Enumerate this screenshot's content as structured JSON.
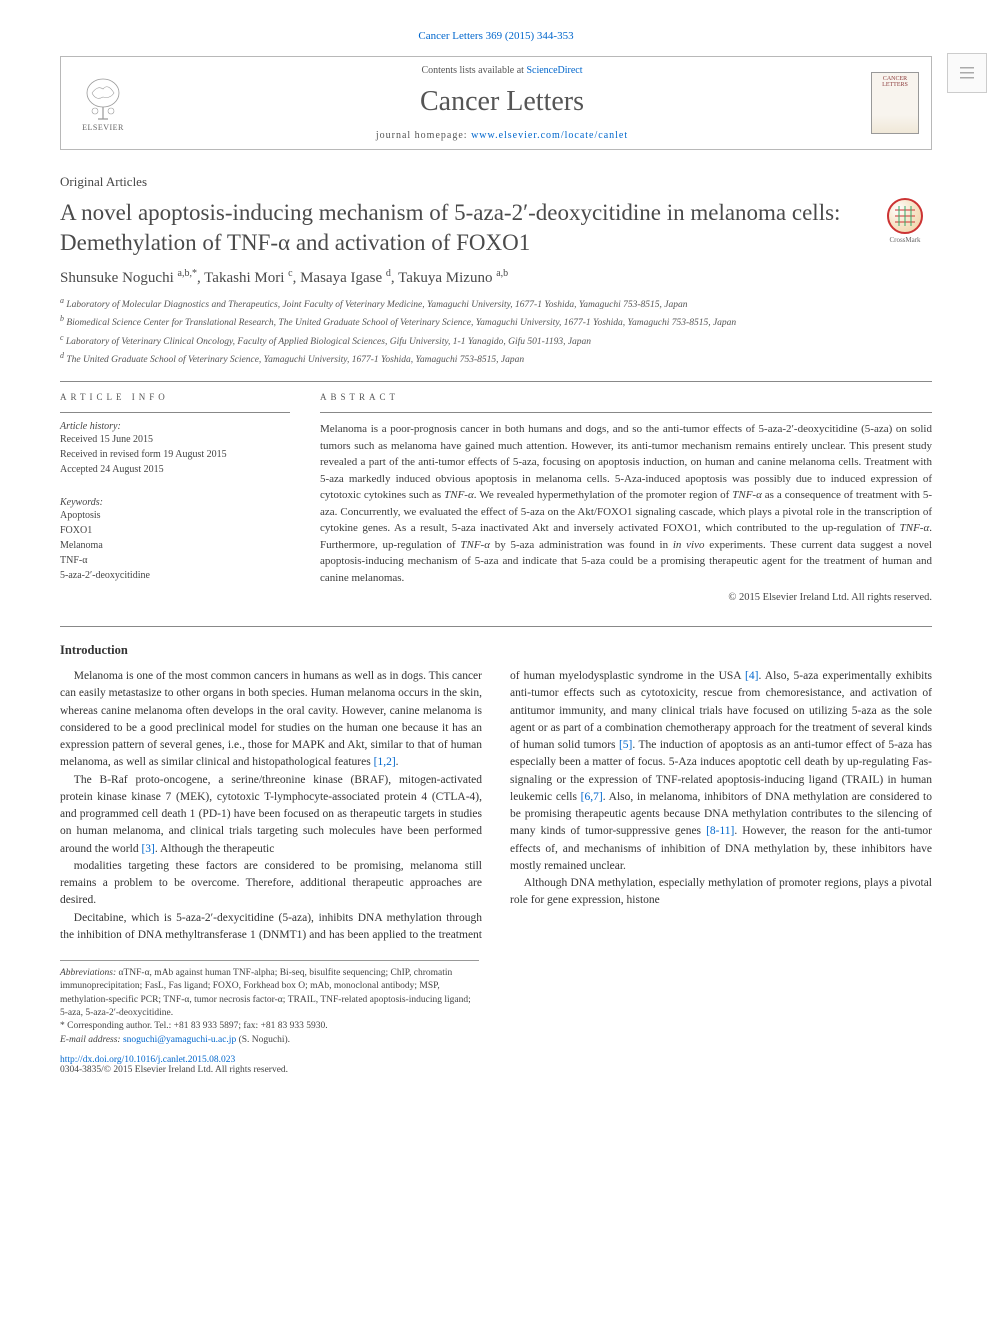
{
  "journal_ref": "Cancer Letters 369 (2015) 344-353",
  "header": {
    "contents_prefix": "Contents lists available at ",
    "contents_link": "ScienceDirect",
    "journal_name": "Cancer Letters",
    "homepage_prefix": "journal homepage: ",
    "homepage_url": "www.elsevier.com/locate/canlet",
    "elsevier_label": "ELSEVIER",
    "cover_label1": "CANCER",
    "cover_label2": "LETTERS"
  },
  "article_type": "Original Articles",
  "title": "A novel apoptosis-inducing mechanism of 5-aza-2′-deoxycitidine in melanoma cells: Demethylation of TNF-α and activation of FOXO1",
  "crossmark_label": "CrossMark",
  "authors_html": "Shunsuke Noguchi <sup>a,b,*</sup>, Takashi Mori <sup>c</sup>, Masaya Igase <sup>d</sup>, Takuya Mizuno <sup>a,b</sup>",
  "affiliations": [
    "a Laboratory of Molecular Diagnostics and Therapeutics, Joint Faculty of Veterinary Medicine, Yamaguchi University, 1677-1 Yoshida, Yamaguchi 753-8515, Japan",
    "b Biomedical Science Center for Translational Research, The United Graduate School of Veterinary Science, Yamaguchi University, 1677-1 Yoshida, Yamaguchi 753-8515, Japan",
    "c Laboratory of Veterinary Clinical Oncology, Faculty of Applied Biological Sciences, Gifu University, 1-1 Yanagido, Gifu 501-1193, Japan",
    "d The United Graduate School of Veterinary Science, Yamaguchi University, 1677-1 Yoshida, Yamaguchi 753-8515, Japan"
  ],
  "info": {
    "heading": "ARTICLE INFO",
    "history_label": "Article history:",
    "received": "Received 15 June 2015",
    "revised": "Received in revised form 19 August 2015",
    "accepted": "Accepted 24 August 2015",
    "keywords_label": "Keywords:",
    "keywords": [
      "Apoptosis",
      "FOXO1",
      "Melanoma",
      "TNF-α",
      "5-aza-2′-deoxycitidine"
    ]
  },
  "abstract": {
    "heading": "ABSTRACT",
    "text": "Melanoma is a poor-prognosis cancer in both humans and dogs, and so the anti-tumor effects of 5-aza-2′-deoxycitidine (5-aza) on solid tumors such as melanoma have gained much attention. However, its anti-tumor mechanism remains entirely unclear. This present study revealed a part of the anti-tumor effects of 5-aza, focusing on apoptosis induction, on human and canine melanoma cells. Treatment with 5-aza markedly induced obvious apoptosis in melanoma cells. 5-Aza-induced apoptosis was possibly due to induced expression of cytotoxic cytokines such as TNF-α. We revealed hypermethylation of the promoter region of TNF-α as a consequence of treatment with 5-aza. Concurrently, we evaluated the effect of 5-aza on the Akt/FOXO1 signaling cascade, which plays a pivotal role in the transcription of cytokine genes. As a result, 5-aza inactivated Akt and inversely activated FOXO1, which contributed to the up-regulation of TNF-α. Furthermore, up-regulation of TNF-α by 5-aza administration was found in in vivo experiments. These current data suggest a novel apoptosis-inducing mechanism of 5-aza and indicate that 5-aza could be a promising therapeutic agent for the treatment of human and canine melanomas.",
    "copyright": "© 2015 Elsevier Ireland Ltd. All rights reserved."
  },
  "body": {
    "heading": "Introduction",
    "p1": "Melanoma is one of the most common cancers in humans as well as in dogs. This cancer can easily metastasize to other organs in both species. Human melanoma occurs in the skin, whereas canine melanoma often develops in the oral cavity. However, canine melanoma is considered to be a good preclinical model for studies on the human one because it has an expression pattern of several genes, i.e., those for MAPK and Akt, similar to that of human melanoma, as well as similar clinical and histopathological features [1,2].",
    "p2": "The B-Raf proto-oncogene, a serine/threonine kinase (BRAF), mitogen-activated protein kinase kinase 7 (MEK), cytotoxic T-lymphocyte-associated protein 4 (CTLA-4), and programmed cell death 1 (PD-1) have been focused on as therapeutic targets in studies on human melanoma, and clinical trials targeting such molecules have been performed around the world [3]. Although the therapeutic",
    "p3": "modalities targeting these factors are considered to be promising, melanoma still remains a problem to be overcome. Therefore, additional therapeutic approaches are desired.",
    "p4": "Decitabine, which is 5-aza-2′-dexycitidine (5-aza), inhibits DNA methylation through the inhibition of DNA methyltransferase 1 (DNMT1) and has been applied to the treatment of human myelodysplastic syndrome in the USA [4]. Also, 5-aza experimentally exhibits anti-tumor effects such as cytotoxicity, rescue from chemoresistance, and activation of antitumor immunity, and many clinical trials have focused on utilizing 5-aza as the sole agent or as part of a combination chemotherapy approach for the treatment of several kinds of human solid tumors [5]. The induction of apoptosis as an anti-tumor effect of 5-aza has especially been a matter of focus. 5-Aza induces apoptotic cell death by up-regulating Fas-signaling or the expression of TNF-related apoptosis-inducing ligand (TRAIL) in human leukemic cells [6,7]. Also, in melanoma, inhibitors of DNA methylation are considered to be promising therapeutic agents because DNA methylation contributes to the silencing of many kinds of tumor-suppressive genes [8-11]. However, the reason for the anti-tumor effects of, and mechanisms of inhibition of DNA methylation by, these inhibitors have mostly remained unclear.",
    "p5": "Although DNA methylation, especially methylation of promoter regions, plays a pivotal role for gene expression, histone"
  },
  "footnotes": {
    "abbrev_label": "Abbreviations:",
    "abbrev_text": " αTNF-α, mAb against human TNF-alpha; Bi-seq, bisulfite sequencing; ChIP, chromatin immunoprecipitation; FasL, Fas ligand; FOXO, Forkhead box O; mAb, monoclonal antibody; MSP, methylation-specific PCR; TNF-α, tumor necrosis factor-α; TRAIL, TNF-related apoptosis-inducing ligand; 5-aza, 5-aza-2′-deoxycitidine.",
    "corresp_label": "* Corresponding author. ",
    "corresp_text": "Tel.: +81 83 933 5897; fax: +81 83 933 5930.",
    "email_label": "E-mail address: ",
    "email": "snoguchi@yamaguchi-u.ac.jp",
    "email_suffix": " (S. Noguchi)."
  },
  "doi": {
    "url": "http://dx.doi.org/10.1016/j.canlet.2015.08.023",
    "issn_line": "0304-3835/© 2015 Elsevier Ireland Ltd. All rights reserved."
  },
  "refs": {
    "r12": "[1,2]",
    "r3": "[3]",
    "r4": "[4]",
    "r5": "[5]",
    "r67": "[6,7]",
    "r811": "[8-11]"
  },
  "colors": {
    "link": "#0066cc",
    "text": "#3a3a3a",
    "rule": "#888888",
    "heading": "#444444"
  }
}
